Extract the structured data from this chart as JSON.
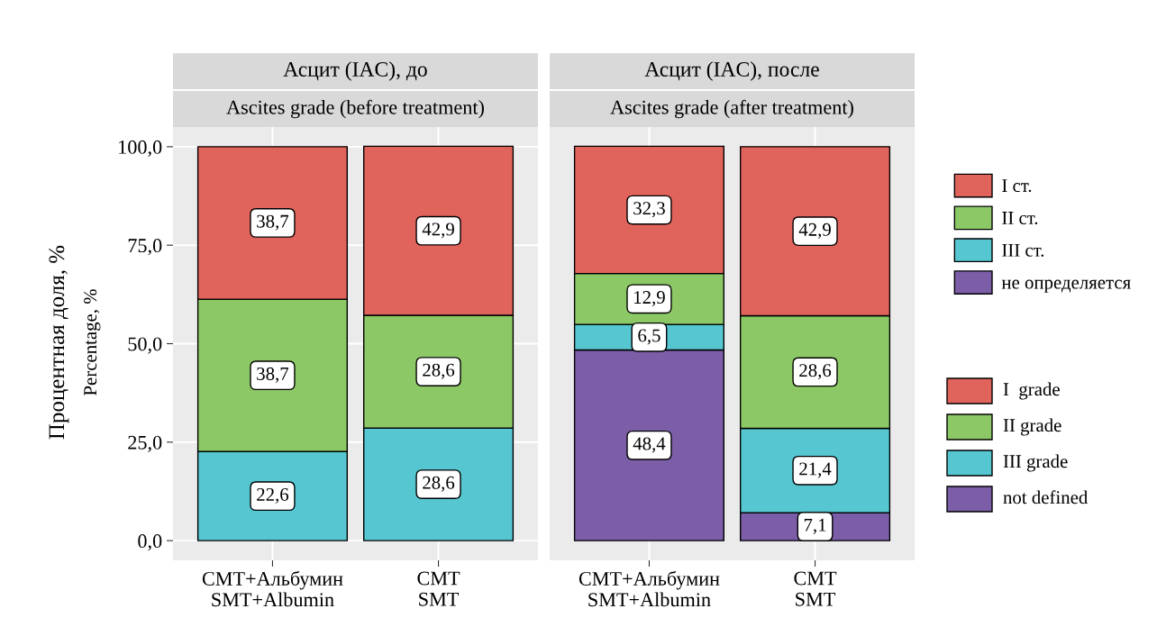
{
  "chart_data": [
    {
      "type": "bar",
      "stacked": true,
      "title": "Асцит (IAC), до",
      "subtitle": "Ascites grade (before treatment)",
      "ylabel": "Процентная доля, %\nPercentage, %",
      "categories": [
        "СМТ+Альбумин\nSMT+Albumin",
        "СМТ\nSMT"
      ],
      "series": [
        {
          "color": "#7b5ea7",
          "values": [
            null,
            null
          ],
          "value_labels": [
            null,
            null
          ]
        },
        {
          "color": "#56c6d0",
          "values": [
            22.6,
            28.6
          ],
          "value_labels": [
            "22,6",
            "28,6"
          ]
        },
        {
          "color": "#8cc866",
          "values": [
            38.7,
            28.6
          ],
          "value_labels": [
            "38,7",
            "28,6"
          ]
        },
        {
          "color": "#e0645c",
          "values": [
            38.7,
            42.9
          ],
          "value_labels": [
            "38,7",
            "42,9"
          ]
        }
      ],
      "ylim": [
        -5,
        105
      ],
      "yticks": [
        {
          "value": 0,
          "label": "0,0"
        },
        {
          "value": 25,
          "label": "25,0"
        },
        {
          "value": 50,
          "label": "50,0"
        },
        {
          "value": 75,
          "label": "75,0"
        },
        {
          "value": 100,
          "label": "100,0"
        }
      ],
      "grid": true
    },
    {
      "type": "bar",
      "stacked": true,
      "title": "Асцит (IAC), после",
      "subtitle": "Ascites grade (after treatment)",
      "categories": [
        "СМТ+Альбумин\nSMT+Albumin",
        "СМТ\nSMT"
      ],
      "series": [
        {
          "name": "не определяется",
          "color": "#7b5ea7",
          "values": [
            48.4,
            7.1
          ],
          "value_labels": [
            "48,4",
            "7,1"
          ]
        },
        {
          "name": "III ст.",
          "color": "#56c6d0",
          "values": [
            6.5,
            21.4
          ],
          "value_labels": [
            "6,5",
            "21,4"
          ]
        },
        {
          "name": "II ст.",
          "color": "#8cc866",
          "values": [
            12.9,
            28.6
          ],
          "value_labels": [
            "12,9",
            "28,6"
          ]
        },
        {
          "name": "I ст.",
          "color": "#e0645c",
          "values": [
            32.3,
            42.9
          ],
          "value_labels": [
            "32,3",
            "42,9"
          ]
        }
      ],
      "ylim": [
        -5,
        105
      ],
      "tick_labels": "x",
      "grid": true,
      "legend": "right",
      "annotations": [
        "I  grade",
        "II grade",
        "III grade",
        "not defined"
      ]
    }
  ]
}
